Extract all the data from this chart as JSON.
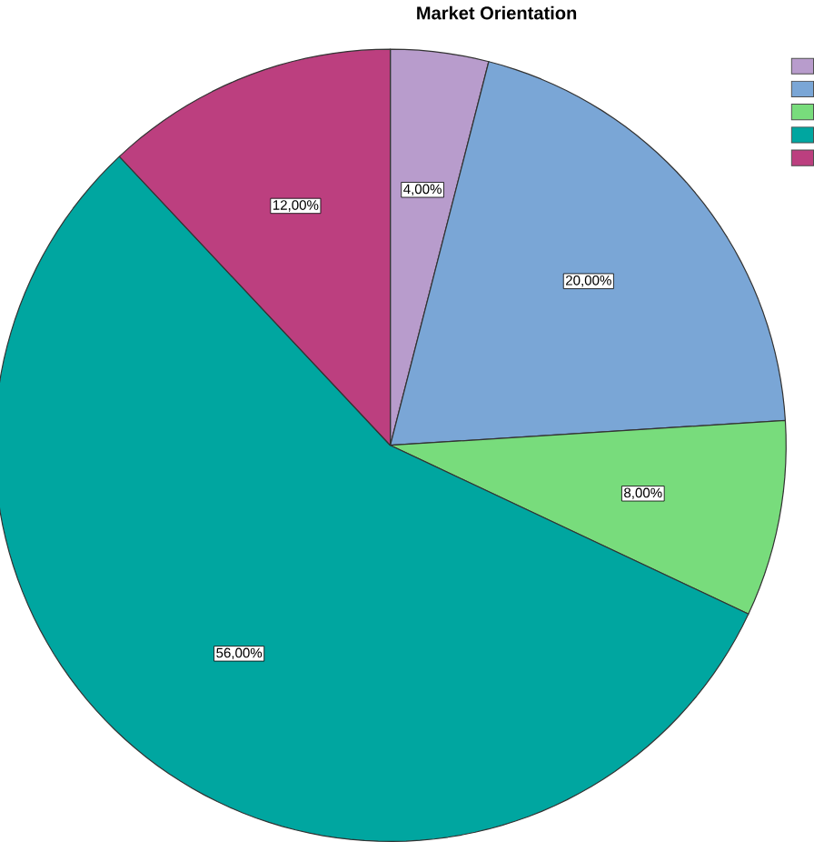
{
  "chart_data": {
    "type": "pie",
    "title": "Market Orientation",
    "categories": [
      null,
      null,
      null,
      null,
      null
    ],
    "values": [
      4,
      20,
      8,
      56,
      12
    ],
    "value_labels": [
      "4,00%",
      "20,00%",
      "8,00%",
      "56,00%",
      "12,00%"
    ],
    "colors": [
      "#b89ccc",
      "#7aa6d6",
      "#78dc7c",
      "#00a6a0",
      "#bc3f7f"
    ]
  }
}
